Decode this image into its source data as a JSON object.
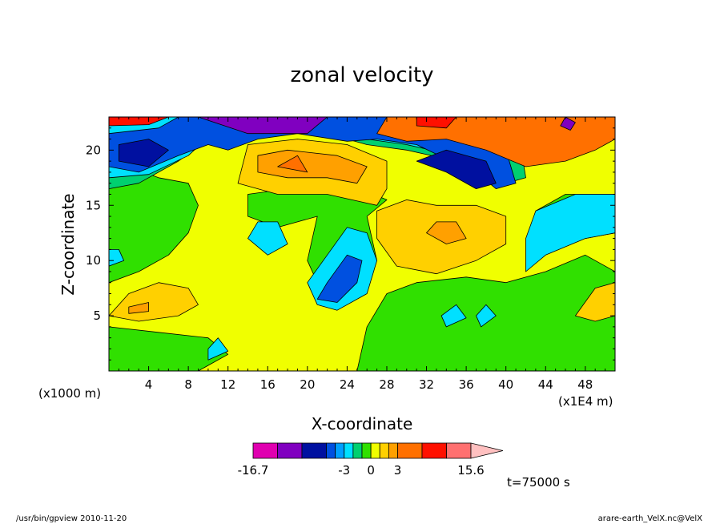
{
  "chart_data": {
    "type": "heatmap",
    "title": "zonal velocity",
    "xlabel": "X-coordinate",
    "ylabel": "Z-coordinate",
    "x_unit": "(x1000 m)",
    "x_scale_note": "(x1E4 m)",
    "x_ticks": [
      4,
      8,
      12,
      16,
      20,
      24,
      28,
      32,
      36,
      40,
      44,
      48
    ],
    "y_ticks": [
      5,
      10,
      15,
      20
    ],
    "xlim": [
      0,
      51
    ],
    "ylim": [
      0,
      23
    ],
    "colorbar": {
      "labels": [
        "-16.7",
        "-3",
        "0",
        "3",
        "15.6"
      ],
      "label_values": [
        -16.7,
        -3,
        0,
        3,
        15.6
      ],
      "bins": [
        {
          "lo": -16.7,
          "hi": -12,
          "color": "#e000b0"
        },
        {
          "lo": -12,
          "hi": -9,
          "color": "#8000c0"
        },
        {
          "lo": -9,
          "hi": -6,
          "color": "#0010a0"
        },
        {
          "lo": -6,
          "hi": -4,
          "color": "#0050e0"
        },
        {
          "lo": -4,
          "hi": -3,
          "color": "#00a0ff"
        },
        {
          "lo": -3,
          "hi": -2,
          "color": "#00e0ff"
        },
        {
          "lo": -2,
          "hi": -1,
          "color": "#00d070"
        },
        {
          "lo": -1,
          "hi": 0,
          "color": "#30e000"
        },
        {
          "lo": 0,
          "hi": 1,
          "color": "#f0ff00"
        },
        {
          "lo": 1,
          "hi": 2,
          "color": "#ffd000"
        },
        {
          "lo": 2,
          "hi": 3,
          "color": "#ffa000"
        },
        {
          "lo": 3,
          "hi": 6,
          "color": "#ff7000"
        },
        {
          "lo": 6,
          "hi": 9,
          "color": "#ff1000"
        },
        {
          "lo": 9,
          "hi": 13,
          "color": "#ff7070"
        },
        {
          "lo": 13,
          "hi": 15.6,
          "color": "#ffc0c0"
        }
      ]
    },
    "field_shapes": [
      {
        "v": 0.6,
        "pts": [
          [
            0,
            0
          ],
          [
            51,
            0
          ],
          [
            51,
            23
          ],
          [
            0,
            23
          ]
        ]
      },
      {
        "v": -0.5,
        "pts": [
          [
            0,
            0
          ],
          [
            9,
            0
          ],
          [
            12,
            1.5
          ],
          [
            10,
            3
          ],
          [
            5,
            3.5
          ],
          [
            0,
            4
          ]
        ]
      },
      {
        "v": -0.5,
        "pts": [
          [
            25,
            0
          ],
          [
            51,
            0
          ],
          [
            51,
            9
          ],
          [
            48,
            10.5
          ],
          [
            44,
            9
          ],
          [
            40,
            8
          ],
          [
            36,
            8.5
          ],
          [
            31,
            8
          ],
          [
            28,
            7
          ],
          [
            26,
            4
          ]
        ]
      },
      {
        "v": -0.5,
        "pts": [
          [
            0,
            8
          ],
          [
            3,
            9
          ],
          [
            6,
            10.5
          ],
          [
            8,
            12.5
          ],
          [
            9,
            15
          ],
          [
            8,
            17
          ],
          [
            5,
            17.5
          ],
          [
            2,
            18.5
          ],
          [
            0,
            18
          ]
        ]
      },
      {
        "v": -0.5,
        "pts": [
          [
            14,
            14
          ],
          [
            17,
            13
          ],
          [
            21,
            14
          ],
          [
            20,
            10
          ],
          [
            21,
            8
          ],
          [
            25,
            7.5
          ],
          [
            27,
            10
          ],
          [
            26,
            14
          ],
          [
            28,
            15.5
          ],
          [
            24,
            17
          ],
          [
            18,
            16.5
          ],
          [
            14,
            16
          ]
        ]
      },
      {
        "v": -0.5,
        "pts": [
          [
            43,
            14.5
          ],
          [
            46,
            16
          ],
          [
            51,
            16
          ],
          [
            51,
            12.5
          ],
          [
            48,
            12
          ]
        ]
      },
      {
        "v": 1.5,
        "pts": [
          [
            0,
            5
          ],
          [
            2,
            7
          ],
          [
            5,
            8
          ],
          [
            8,
            7.5
          ],
          [
            9,
            6
          ],
          [
            7,
            5
          ],
          [
            3,
            4.5
          ]
        ]
      },
      {
        "v": 2.5,
        "pts": [
          [
            2,
            5.8
          ],
          [
            4,
            6.2
          ],
          [
            4,
            5.4
          ],
          [
            2,
            5.2
          ]
        ]
      },
      {
        "v": 1.5,
        "pts": [
          [
            27,
            12
          ],
          [
            29,
            9.5
          ],
          [
            33,
            8.8
          ],
          [
            37,
            10
          ],
          [
            40,
            11.5
          ],
          [
            40,
            14
          ],
          [
            37,
            15
          ],
          [
            33,
            15
          ],
          [
            30,
            15.5
          ],
          [
            27,
            14.5
          ]
        ]
      },
      {
        "v": 2.5,
        "pts": [
          [
            32,
            12.5
          ],
          [
            34,
            11.5
          ],
          [
            36,
            12
          ],
          [
            35,
            13.5
          ],
          [
            33,
            13.5
          ]
        ]
      },
      {
        "v": 1.5,
        "pts": [
          [
            47,
            5
          ],
          [
            49,
            4.5
          ],
          [
            51,
            5
          ],
          [
            51,
            8
          ],
          [
            49,
            7.5
          ]
        ]
      },
      {
        "v": 1.5,
        "pts": [
          [
            13,
            17
          ],
          [
            17,
            16
          ],
          [
            22,
            16
          ],
          [
            27,
            15
          ],
          [
            28,
            16.5
          ],
          [
            28,
            19
          ],
          [
            24,
            20.5
          ],
          [
            19,
            21
          ],
          [
            14,
            20.5
          ]
        ]
      },
      {
        "v": 2.5,
        "pts": [
          [
            15,
            18
          ],
          [
            18,
            17.5
          ],
          [
            22,
            17.5
          ],
          [
            25,
            17
          ],
          [
            26,
            18.5
          ],
          [
            23,
            19.5
          ],
          [
            18,
            20
          ],
          [
            15,
            19.5
          ]
        ]
      },
      {
        "v": 4.5,
        "pts": [
          [
            17,
            18.5
          ],
          [
            20,
            18
          ],
          [
            19,
            19.5
          ]
        ]
      },
      {
        "v": -2.5,
        "pts": [
          [
            14,
            12
          ],
          [
            16,
            10.5
          ],
          [
            18,
            11.5
          ],
          [
            17,
            13.5
          ],
          [
            15,
            13.5
          ]
        ]
      },
      {
        "v": -2.5,
        "pts": [
          [
            21,
            6
          ],
          [
            23,
            5.5
          ],
          [
            26,
            7
          ],
          [
            27,
            10
          ],
          [
            26,
            12.5
          ],
          [
            24,
            13
          ],
          [
            22,
            10.5
          ],
          [
            20,
            8
          ]
        ]
      },
      {
        "v": -5,
        "pts": [
          [
            21,
            6.5
          ],
          [
            23,
            6.2
          ],
          [
            25,
            8
          ],
          [
            25.5,
            10
          ],
          [
            24,
            10.5
          ],
          [
            22,
            8
          ]
        ]
      },
      {
        "v": -2.5,
        "pts": [
          [
            42,
            9
          ],
          [
            44,
            10.5
          ],
          [
            48,
            12
          ],
          [
            51,
            12.5
          ],
          [
            51,
            16
          ],
          [
            47,
            16
          ],
          [
            43,
            14.5
          ],
          [
            42,
            12
          ]
        ]
      },
      {
        "v": -2.5,
        "pts": [
          [
            0,
            9.5
          ],
          [
            1.5,
            10
          ],
          [
            1,
            11
          ],
          [
            0,
            11
          ]
        ]
      },
      {
        "v": -2.5,
        "pts": [
          [
            34,
            4
          ],
          [
            36,
            4.8
          ],
          [
            35,
            6
          ],
          [
            33.5,
            5
          ]
        ]
      },
      {
        "v": -2.5,
        "pts": [
          [
            37.5,
            4
          ],
          [
            39,
            5
          ],
          [
            38,
            6
          ],
          [
            37,
            5
          ]
        ]
      },
      {
        "v": -2.5,
        "pts": [
          [
            10,
            1
          ],
          [
            12,
            1.8
          ],
          [
            11,
            3
          ],
          [
            10,
            2
          ]
        ]
      },
      {
        "v": -1.5,
        "pts": [
          [
            0,
            16.5
          ],
          [
            3,
            17
          ],
          [
            7,
            19
          ],
          [
            11,
            21.5
          ],
          [
            16,
            22
          ],
          [
            22,
            21.5
          ],
          [
            26,
            20.5
          ],
          [
            30,
            20
          ],
          [
            35,
            19
          ],
          [
            40,
            17
          ],
          [
            42,
            17.5
          ],
          [
            41,
            23
          ],
          [
            0,
            23
          ]
        ]
      },
      {
        "v": -2.5,
        "pts": [
          [
            0,
            17.5
          ],
          [
            4,
            17.8
          ],
          [
            8,
            19.5
          ],
          [
            11,
            22
          ],
          [
            15,
            22.5
          ],
          [
            22,
            22
          ],
          [
            26,
            21
          ],
          [
            30,
            20.5
          ],
          [
            35,
            19.5
          ],
          [
            39,
            17.5
          ],
          [
            40,
            18.5
          ],
          [
            39,
            23
          ],
          [
            0,
            23
          ]
        ]
      },
      {
        "v": -5,
        "pts": [
          [
            0,
            18.5
          ],
          [
            3,
            18
          ],
          [
            7,
            19.5
          ],
          [
            10,
            20.5
          ],
          [
            12,
            20
          ],
          [
            15,
            21
          ],
          [
            19,
            21.5
          ],
          [
            24,
            20.8
          ],
          [
            27,
            21
          ],
          [
            31,
            20.5
          ],
          [
            34,
            19.2
          ],
          [
            37,
            18
          ],
          [
            39,
            16.5
          ],
          [
            41,
            17
          ],
          [
            40,
            20
          ],
          [
            36,
            21
          ],
          [
            32,
            23
          ],
          [
            7,
            23
          ],
          [
            5,
            22
          ],
          [
            0,
            21.5
          ]
        ]
      },
      {
        "v": -7.5,
        "pts": [
          [
            1,
            19
          ],
          [
            4,
            18.5
          ],
          [
            6,
            20
          ],
          [
            4,
            21
          ],
          [
            1,
            20.5
          ]
        ]
      },
      {
        "v": -7.5,
        "pts": [
          [
            31,
            19
          ],
          [
            34,
            18
          ],
          [
            37,
            16.5
          ],
          [
            39,
            17
          ],
          [
            38,
            19
          ],
          [
            34,
            20
          ]
        ]
      },
      {
        "v": -10,
        "pts": [
          [
            9,
            23
          ],
          [
            14,
            21.5
          ],
          [
            20,
            21.5
          ],
          [
            22,
            23
          ]
        ]
      },
      {
        "v": 4.5,
        "pts": [
          [
            27,
            21.5
          ],
          [
            30,
            20.8
          ],
          [
            34,
            21
          ],
          [
            38,
            20
          ],
          [
            42,
            18.5
          ],
          [
            46,
            19
          ],
          [
            49,
            20
          ],
          [
            51,
            21
          ],
          [
            51,
            23
          ],
          [
            28,
            23
          ]
        ]
      },
      {
        "v": 7.5,
        "pts": [
          [
            31,
            22.2
          ],
          [
            34,
            22
          ],
          [
            35,
            23
          ],
          [
            31,
            23
          ]
        ]
      },
      {
        "v": 7.5,
        "pts": [
          [
            0,
            22.2
          ],
          [
            4,
            22.3
          ],
          [
            6,
            23
          ],
          [
            0,
            23
          ]
        ]
      },
      {
        "v": -10,
        "pts": [
          [
            45.5,
            22.2
          ],
          [
            46.5,
            21.8
          ],
          [
            47,
            22.5
          ],
          [
            46,
            23
          ]
        ]
      }
    ]
  },
  "footer": {
    "time": "t=75000 s",
    "program": "/usr/bin/gpview  2010-11-20",
    "file": "arare-earth_VelX.nc@VelX"
  }
}
